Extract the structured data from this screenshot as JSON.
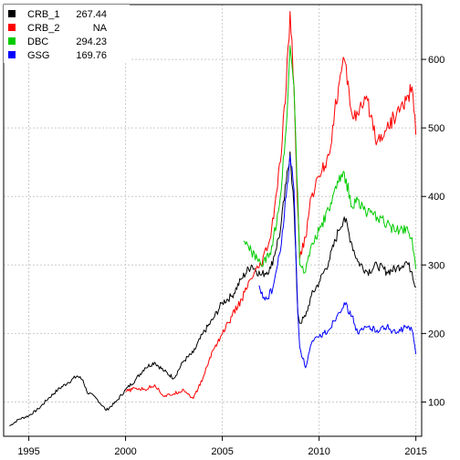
{
  "chart_data": {
    "type": "line",
    "title": "",
    "xlabel": "",
    "ylabel": "",
    "xlim": [
      1993.7,
      2015.3
    ],
    "ylim": [
      50,
      680
    ],
    "grid": true,
    "legend_position": "top-left",
    "x_ticks": [
      1995,
      2000,
      2005,
      2010,
      2015
    ],
    "x_tick_labels": [
      "1995",
      "2000",
      "2005",
      "2010",
      "2015"
    ],
    "y_ticks": [
      100,
      200,
      300,
      400,
      500,
      600
    ],
    "y_tick_labels": [
      "100",
      "200",
      "300",
      "400",
      "500",
      "600"
    ],
    "legend": [
      {
        "name": "CRB_1",
        "value": "267.44",
        "color": "#000000"
      },
      {
        "name": "CRB_2",
        "value": "NA",
        "color": "#ff0000"
      },
      {
        "name": "DBC",
        "value": "294.23",
        "color": "#00cc00"
      },
      {
        "name": "GSG",
        "value": "169.76",
        "color": "#0000ff"
      }
    ],
    "series": [
      {
        "name": "CRB_1",
        "color": "#000000",
        "x": [
          1994.0,
          1994.5,
          1995.0,
          1995.5,
          1996.0,
          1996.5,
          1997.0,
          1997.5,
          1997.8,
          1998.0,
          1998.5,
          1999.0,
          1999.5,
          2000.0,
          2000.5,
          2001.0,
          2001.5,
          2002.0,
          2002.5,
          2003.0,
          2003.5,
          2004.0,
          2004.5,
          2005.0,
          2005.5,
          2006.0,
          2006.5,
          2007.0,
          2007.5,
          2008.0,
          2008.3,
          2008.5,
          2008.7,
          2008.9,
          2009.0,
          2009.3,
          2009.6,
          2010.0,
          2010.5,
          2011.0,
          2011.3,
          2011.7,
          2012.0,
          2012.5,
          2013.0,
          2013.5,
          2014.0,
          2014.5,
          2014.8,
          2015.0
        ],
        "y": [
          65,
          75,
          80,
          90,
          105,
          118,
          128,
          138,
          132,
          115,
          105,
          88,
          100,
          118,
          132,
          150,
          158,
          145,
          135,
          160,
          172,
          200,
          220,
          245,
          255,
          280,
          300,
          285,
          295,
          350,
          420,
          465,
          385,
          230,
          215,
          225,
          255,
          275,
          305,
          350,
          370,
          330,
          305,
          290,
          300,
          290,
          295,
          305,
          290,
          267
        ]
      },
      {
        "name": "CRB_2",
        "color": "#ff0000",
        "x": [
          2000.0,
          2000.5,
          2001.0,
          2001.5,
          2002.0,
          2002.5,
          2003.0,
          2003.5,
          2004.0,
          2004.5,
          2005.0,
          2005.5,
          2006.0,
          2006.5,
          2007.0,
          2007.5,
          2008.0,
          2008.3,
          2008.5,
          2008.7,
          2008.9,
          2009.0,
          2009.3,
          2009.6,
          2010.0,
          2010.5,
          2011.0,
          2011.3,
          2011.7,
          2012.0,
          2012.5,
          2013.0,
          2013.5,
          2014.0,
          2014.5,
          2014.8,
          2015.0
        ],
        "y": [
          115,
          120,
          118,
          125,
          108,
          112,
          118,
          105,
          135,
          175,
          200,
          225,
          250,
          280,
          300,
          340,
          450,
          560,
          670,
          560,
          380,
          310,
          340,
          400,
          430,
          460,
          560,
          600,
          520,
          520,
          540,
          480,
          500,
          520,
          540,
          560,
          490
        ]
      },
      {
        "name": "DBC",
        "color": "#00cc00",
        "x": [
          2006.1,
          2006.5,
          2007.0,
          2007.5,
          2008.0,
          2008.3,
          2008.5,
          2008.7,
          2008.9,
          2009.0,
          2009.3,
          2009.6,
          2010.0,
          2010.5,
          2011.0,
          2011.3,
          2011.7,
          2012.0,
          2012.5,
          2013.0,
          2013.5,
          2014.0,
          2014.5,
          2014.8,
          2015.0
        ],
        "y": [
          335,
          320,
          300,
          315,
          400,
          500,
          620,
          560,
          400,
          300,
          290,
          330,
          350,
          380,
          420,
          435,
          385,
          395,
          375,
          370,
          360,
          350,
          355,
          340,
          294
        ]
      },
      {
        "name": "GSG",
        "color": "#0000ff",
        "x": [
          2006.9,
          2007.0,
          2007.3,
          2007.6,
          2008.0,
          2008.3,
          2008.5,
          2008.7,
          2008.9,
          2009.0,
          2009.3,
          2009.6,
          2010.0,
          2010.5,
          2011.0,
          2011.3,
          2011.7,
          2012.0,
          2012.5,
          2013.0,
          2013.5,
          2014.0,
          2014.5,
          2014.8,
          2015.0
        ],
        "y": [
          270,
          258,
          250,
          265,
          320,
          400,
          460,
          410,
          230,
          180,
          150,
          185,
          195,
          205,
          230,
          245,
          225,
          200,
          210,
          205,
          210,
          200,
          210,
          205,
          170
        ]
      }
    ]
  }
}
